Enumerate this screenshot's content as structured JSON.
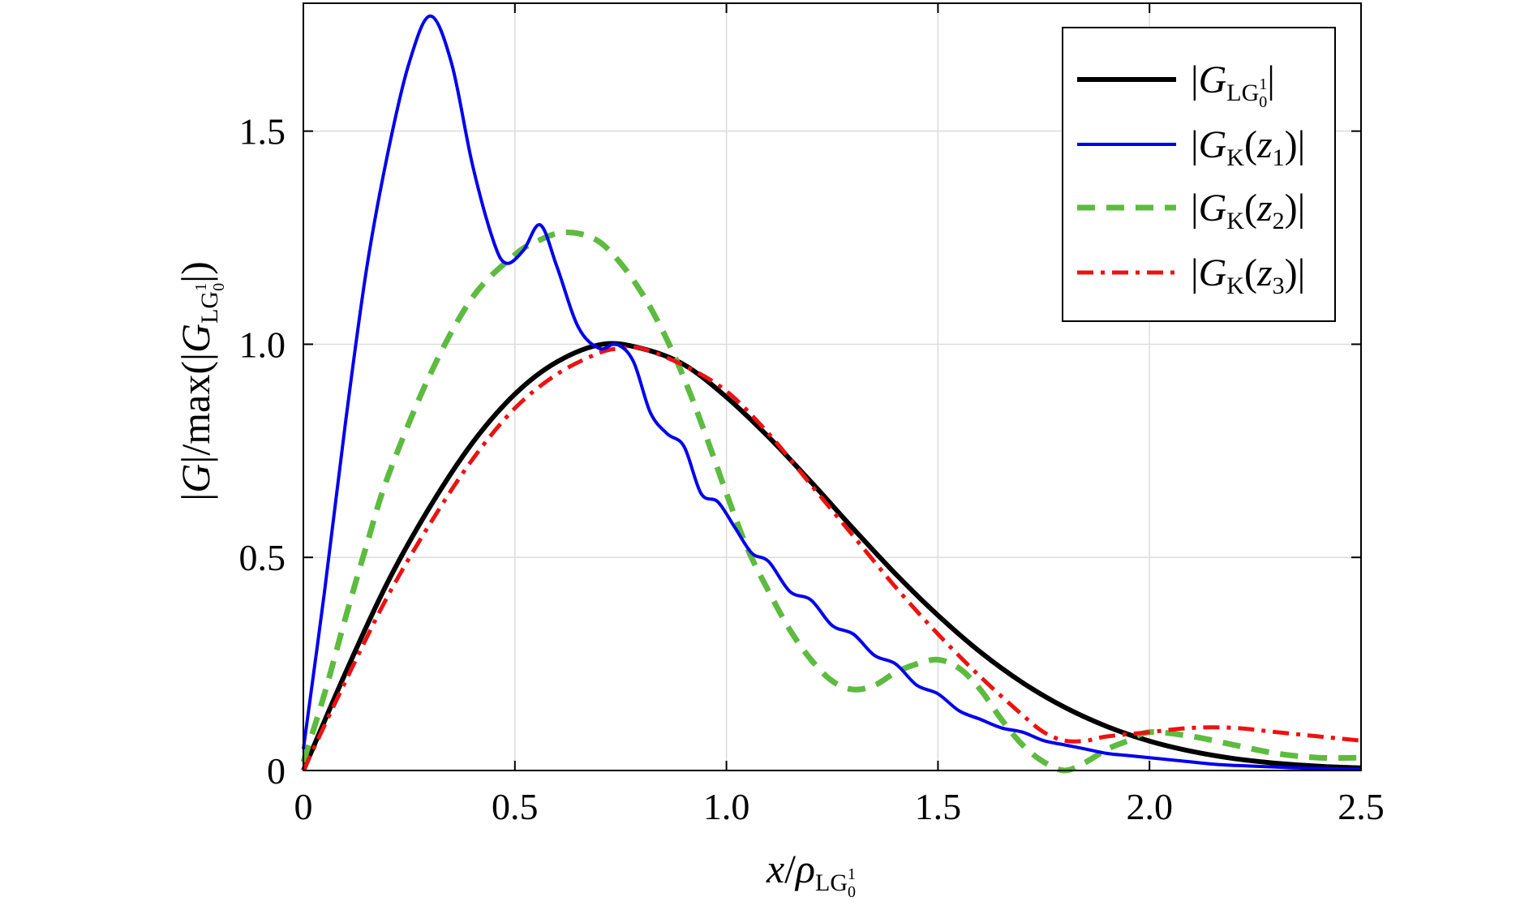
{
  "chart_data": {
    "type": "line",
    "xlabel": {
      "main": "x",
      "sep": "/",
      "symbol": "ρ",
      "sub": "LG",
      "sub_sup": "1",
      "sub_sub": "0"
    },
    "ylabel": {
      "prefix": "|",
      "var": "G",
      "mid": "|/max(|",
      "var2": "G",
      "sub": "LG",
      "sub_sup": "1",
      "sub_sub": "0",
      "suffix": "|)"
    },
    "xlim": [
      0,
      2.5
    ],
    "ylim": [
      0,
      1.8
    ],
    "xticks": [
      0,
      0.5,
      1.0,
      1.5,
      2.0,
      2.5
    ],
    "xtick_labels": [
      "0",
      "0.5",
      "1.0",
      "1.5",
      "2.0",
      "2.5"
    ],
    "yticks": [
      0,
      0.5,
      1.0,
      1.5
    ],
    "ytick_labels": [
      "0",
      "0.5",
      "1.0",
      "1.5"
    ],
    "grid": true,
    "legend_position": "top-right",
    "series": [
      {
        "name": "|G_LG(1,0)|",
        "legend": {
          "var": "G",
          "sub": "LG",
          "sub_sup": "1",
          "sub_sub": "0",
          "arg": "",
          "arg_sub": ""
        },
        "color": "#000000",
        "style": "solid",
        "x": [
          0,
          0.1,
          0.2,
          0.3,
          0.4,
          0.5,
          0.6,
          0.707,
          0.8,
          0.9,
          1.0,
          1.1,
          1.2,
          1.3,
          1.4,
          1.5,
          1.6,
          1.7,
          1.8,
          1.9,
          2.0,
          2.1,
          2.2,
          2.3,
          2.4,
          2.5
        ],
        "y": [
          0.0,
          0.23,
          0.443,
          0.62,
          0.769,
          0.883,
          0.959,
          1.0,
          0.99,
          0.952,
          0.876,
          0.782,
          0.677,
          0.567,
          0.461,
          0.364,
          0.278,
          0.206,
          0.148,
          0.103,
          0.069,
          0.045,
          0.028,
          0.017,
          0.01,
          0.006
        ]
      },
      {
        "name": "|G_K(z1)|",
        "legend": {
          "var": "G",
          "sub": "K",
          "sub_sup": "",
          "sub_sub": "",
          "arg": "z",
          "arg_sub": "1"
        },
        "color": "#0000ee",
        "style": "solid",
        "x": [
          0,
          0.05,
          0.1,
          0.15,
          0.2,
          0.25,
          0.3,
          0.35,
          0.4,
          0.45,
          0.48,
          0.52,
          0.56,
          0.6,
          0.65,
          0.7,
          0.74,
          0.78,
          0.82,
          0.86,
          0.9,
          0.94,
          0.98,
          1.02,
          1.06,
          1.1,
          1.15,
          1.2,
          1.25,
          1.3,
          1.35,
          1.4,
          1.45,
          1.5,
          1.55,
          1.6,
          1.65,
          1.7,
          1.75,
          1.8,
          1.85,
          1.9,
          1.95,
          2.0,
          2.05,
          2.1,
          2.15,
          2.2,
          2.25,
          2.3,
          2.35,
          2.4,
          2.45,
          2.5
        ],
        "y": [
          0.05,
          0.42,
          0.82,
          1.18,
          1.45,
          1.66,
          1.77,
          1.66,
          1.42,
          1.24,
          1.19,
          1.22,
          1.28,
          1.18,
          1.04,
          0.99,
          1.0,
          0.96,
          0.84,
          0.79,
          0.76,
          0.65,
          0.63,
          0.57,
          0.51,
          0.49,
          0.42,
          0.4,
          0.34,
          0.32,
          0.27,
          0.25,
          0.2,
          0.18,
          0.14,
          0.12,
          0.1,
          0.09,
          0.07,
          0.06,
          0.05,
          0.04,
          0.035,
          0.03,
          0.025,
          0.02,
          0.015,
          0.012,
          0.01,
          0.008,
          0.006,
          0.005,
          0.004,
          0.003
        ]
      },
      {
        "name": "|G_K(z2)|",
        "legend": {
          "var": "G",
          "sub": "K",
          "sub_sup": "",
          "sub_sub": "",
          "arg": "z",
          "arg_sub": "2"
        },
        "color": "#5dbb3f",
        "style": "dashed",
        "x": [
          0,
          0.05,
          0.1,
          0.15,
          0.2,
          0.3,
          0.4,
          0.5,
          0.55,
          0.6,
          0.65,
          0.7,
          0.75,
          0.8,
          0.85,
          0.9,
          0.95,
          1.0,
          1.05,
          1.1,
          1.15,
          1.2,
          1.25,
          1.3,
          1.35,
          1.4,
          1.45,
          1.5,
          1.55,
          1.6,
          1.65,
          1.7,
          1.75,
          1.8,
          1.85,
          1.9,
          1.95,
          2.0,
          2.1,
          2.2,
          2.3,
          2.4,
          2.5
        ],
        "y": [
          0.02,
          0.18,
          0.36,
          0.53,
          0.69,
          0.93,
          1.11,
          1.21,
          1.24,
          1.26,
          1.26,
          1.24,
          1.19,
          1.12,
          1.03,
          0.92,
          0.79,
          0.65,
          0.52,
          0.42,
          0.33,
          0.26,
          0.21,
          0.19,
          0.2,
          0.23,
          0.25,
          0.26,
          0.24,
          0.19,
          0.12,
          0.06,
          0.02,
          0.0,
          0.02,
          0.05,
          0.07,
          0.09,
          0.08,
          0.06,
          0.04,
          0.03,
          0.03
        ]
      },
      {
        "name": "|G_K(z3)|",
        "legend": {
          "var": "G",
          "sub": "K",
          "sub_sup": "",
          "sub_sub": "",
          "arg": "z",
          "arg_sub": "3"
        },
        "color": "#ee1111",
        "style": "dashdot",
        "x": [
          0,
          0.1,
          0.2,
          0.3,
          0.4,
          0.5,
          0.6,
          0.7,
          0.75,
          0.8,
          0.9,
          1.0,
          1.1,
          1.2,
          1.3,
          1.4,
          1.5,
          1.6,
          1.7,
          1.75,
          1.8,
          1.85,
          1.9,
          2.0,
          2.1,
          2.2,
          2.3,
          2.4,
          2.5
        ],
        "y": [
          0.0,
          0.21,
          0.41,
          0.58,
          0.73,
          0.85,
          0.93,
          0.98,
          0.99,
          0.99,
          0.95,
          0.89,
          0.79,
          0.67,
          0.55,
          0.43,
          0.32,
          0.22,
          0.13,
          0.09,
          0.07,
          0.07,
          0.08,
          0.09,
          0.1,
          0.1,
          0.09,
          0.08,
          0.07
        ]
      }
    ]
  }
}
